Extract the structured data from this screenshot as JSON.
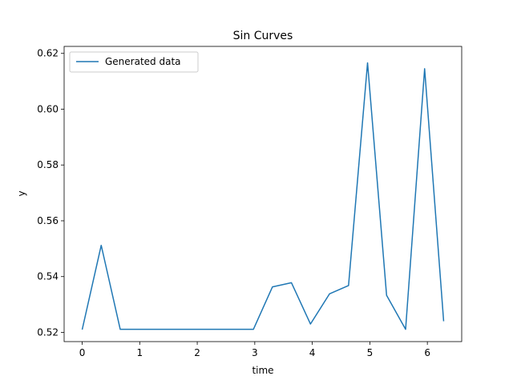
{
  "chart_data": {
    "type": "line",
    "title": "Sin Curves",
    "xlabel": "time",
    "ylabel": "y",
    "xlim": [
      -0.314,
      6.597
    ],
    "ylim": [
      0.5167,
      0.6225
    ],
    "x_ticks": [
      0,
      1,
      2,
      3,
      4,
      5,
      6
    ],
    "x_tick_labels": [
      "0",
      "1",
      "2",
      "3",
      "4",
      "5",
      "6"
    ],
    "y_ticks": [
      0.52,
      0.54,
      0.56,
      0.58,
      0.6,
      0.62
    ],
    "y_tick_labels": [
      "0.52",
      "0.54",
      "0.56",
      "0.58",
      "0.60",
      "0.62"
    ],
    "grid": false,
    "legend": {
      "position": "top-left",
      "entries": [
        "Generated data"
      ]
    },
    "series": [
      {
        "name": "Generated data",
        "color": "#1f77b4",
        "x": [
          0.0,
          0.3307,
          0.6614,
          0.9921,
          1.3228,
          1.6535,
          1.9842,
          2.3149,
          2.6456,
          2.9762,
          3.3069,
          3.6376,
          3.9683,
          4.299,
          4.6297,
          4.9604,
          5.2911,
          5.6218,
          5.9525,
          6.2832
        ],
        "y": [
          0.521,
          0.5512,
          0.5211,
          0.5211,
          0.5211,
          0.5211,
          0.5211,
          0.5211,
          0.5211,
          0.5211,
          0.5363,
          0.5378,
          0.523,
          0.5338,
          0.5368,
          0.6166,
          0.5333,
          0.5211,
          0.6145,
          0.524
        ]
      }
    ]
  }
}
